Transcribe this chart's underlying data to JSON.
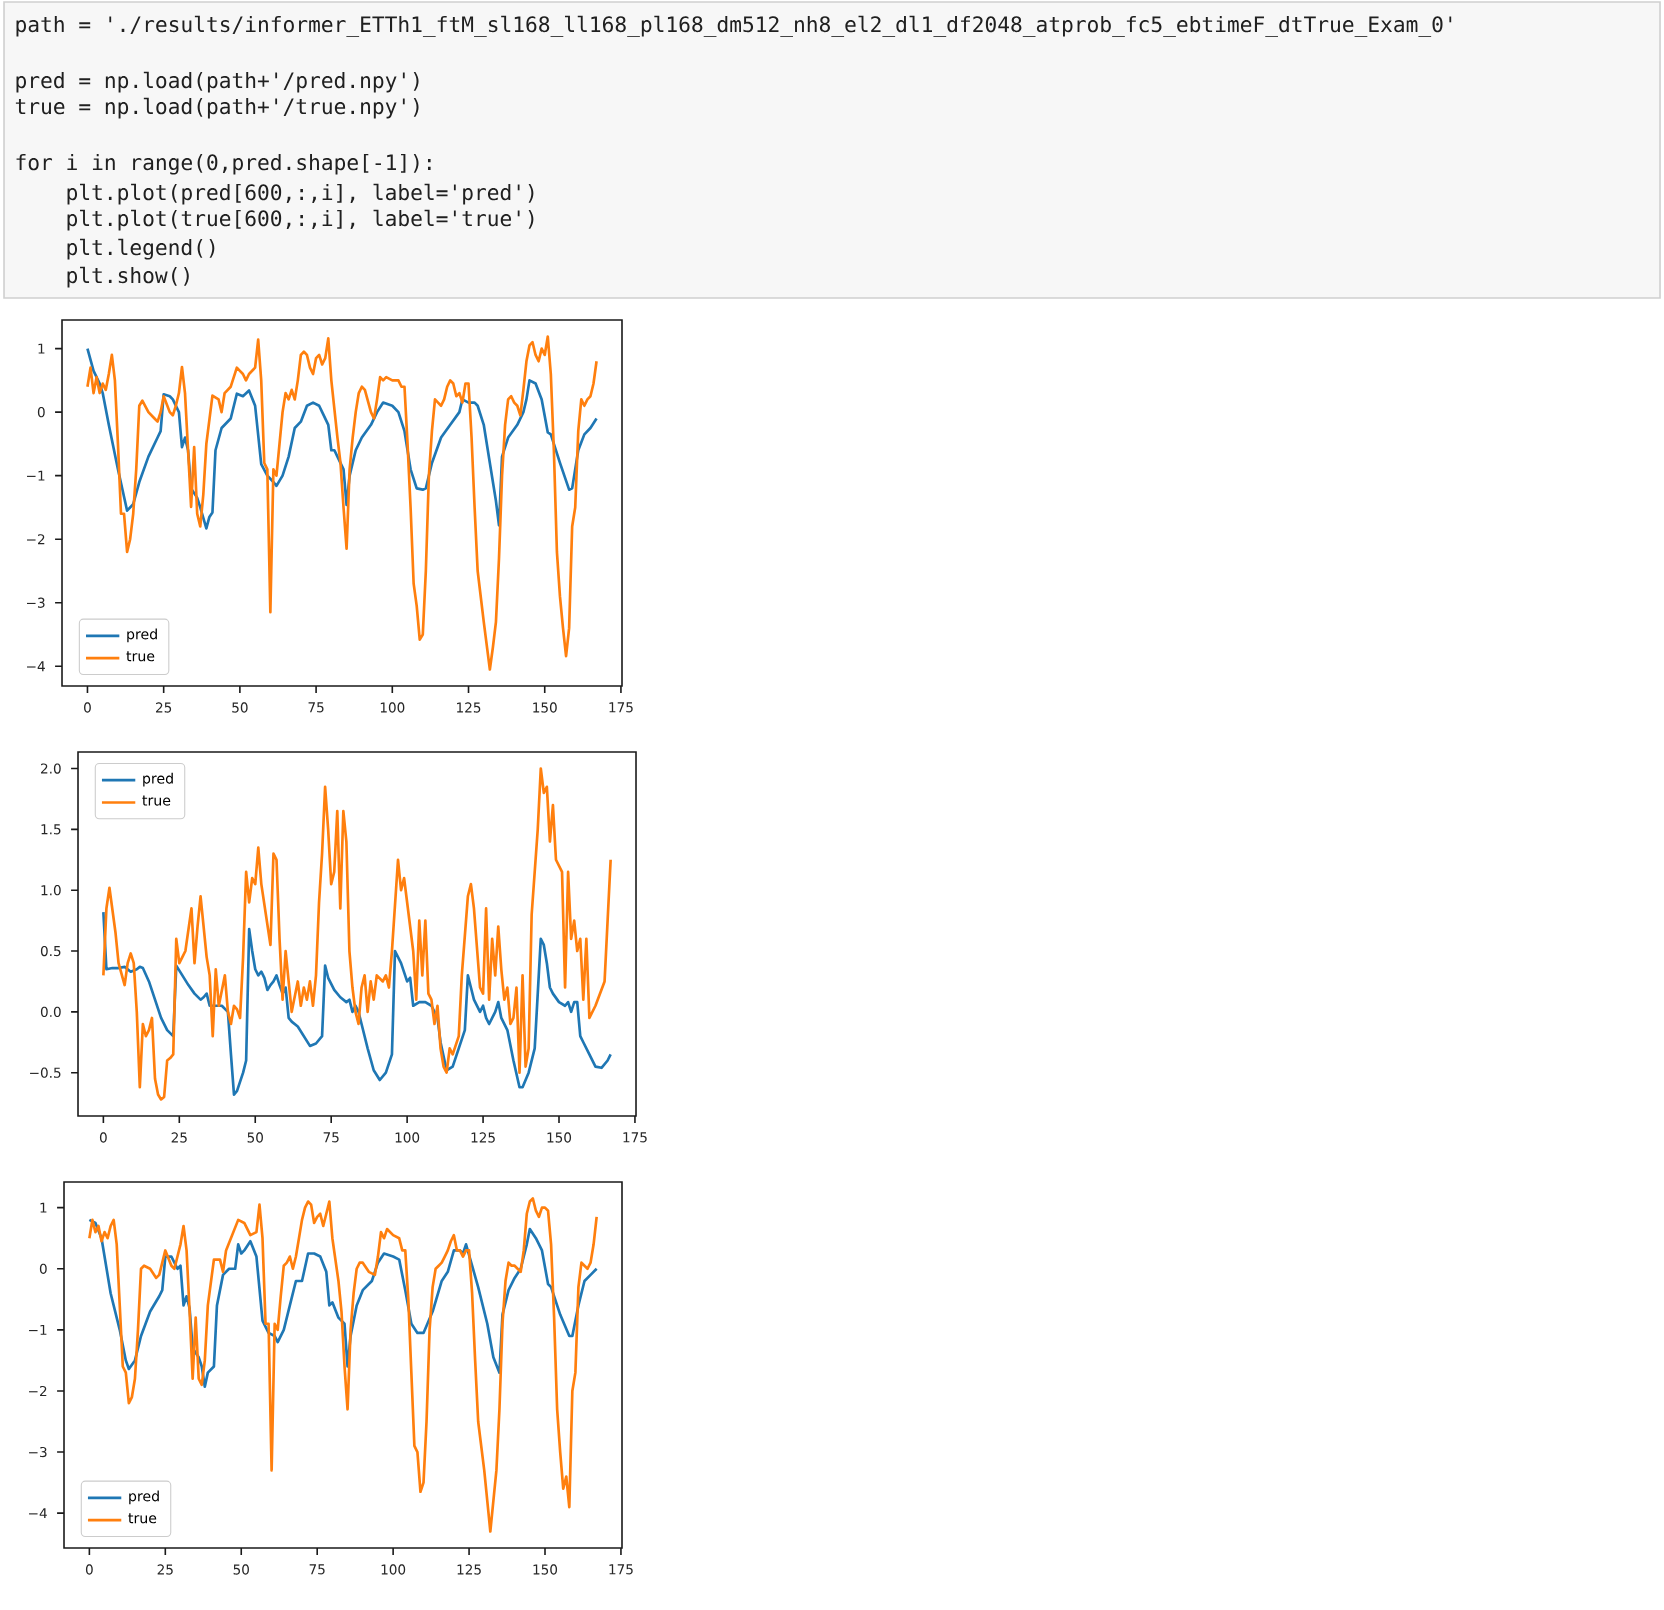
{
  "chart_data": [
    {
      "type": "line",
      "annotations": [
        "path = './results/informer_ETTh1_ftM_sl168_ll168_pl168_dm512_nh8_el2_dl1_df2048_atprob_fc5_ebtimeF_dtTrue_Exam_0'",
        "pred = np.load(path+'/pred.npy')",
        "true = np.load(path+'/true.npy')",
        "for i in range(0,pred.shape[-1]):",
        "plt.plot(pred[600,:,i], label='pred')",
        "plt.plot(true[600,:,i], label='true')",
        "plt.legend()",
        "plt.show()"
      ],
      "xlim": [
        -8.35,
        175.35
      ],
      "ylim": [
        -4.31,
        1.45
      ],
      "xticks": [
        0,
        25,
        50,
        75,
        100,
        125,
        150,
        175
      ],
      "yticks": [
        {
          "value": -4,
          "label": "−4"
        },
        {
          "value": -3,
          "label": "−3"
        },
        {
          "value": -2,
          "label": "−2"
        },
        {
          "value": -1,
          "label": "−1"
        },
        0,
        1
      ],
      "legend": "bottom left",
      "series": [
        {
          "name": "pred",
          "color": "#1f77b4",
          "x": [
            0,
            2,
            4,
            5,
            7,
            10,
            13,
            15,
            17,
            20,
            23,
            24,
            25,
            27,
            28,
            30,
            31,
            32,
            33,
            34,
            36,
            37,
            39,
            40,
            41,
            42,
            44,
            47,
            49,
            51,
            53,
            55,
            57,
            59,
            61,
            62,
            64,
            66,
            68,
            70,
            72,
            74,
            76,
            77,
            79,
            80,
            81,
            82,
            84,
            85,
            86,
            88,
            90,
            93,
            95,
            97,
            100,
            102,
            104,
            106,
            108,
            110,
            111,
            113,
            116,
            119,
            122,
            123,
            125,
            127,
            128,
            130,
            132,
            134,
            135,
            136,
            138,
            141,
            143,
            144,
            145,
            147,
            149,
            151,
            152,
            155,
            158,
            159,
            161,
            163,
            165,
            167
          ],
          "values": [
            1.0,
            0.65,
            0.45,
            0.3,
            -0.2,
            -0.9,
            -1.55,
            -1.45,
            -1.1,
            -0.7,
            -0.4,
            -0.3,
            0.28,
            0.25,
            0.2,
            0.0,
            -0.55,
            -0.4,
            -0.6,
            -1.2,
            -1.35,
            -1.5,
            -1.83,
            -1.65,
            -1.58,
            -0.6,
            -0.25,
            -0.1,
            0.29,
            0.25,
            0.34,
            0.1,
            -0.82,
            -1.0,
            -1.1,
            -1.16,
            -1.0,
            -0.7,
            -0.25,
            -0.15,
            0.1,
            0.15,
            0.1,
            0.0,
            -0.2,
            -0.6,
            -0.6,
            -0.7,
            -0.9,
            -1.46,
            -1.0,
            -0.6,
            -0.4,
            -0.2,
            0.0,
            0.15,
            0.1,
            0.0,
            -0.3,
            -0.9,
            -1.2,
            -1.22,
            -1.2,
            -0.8,
            -0.4,
            -0.2,
            0.0,
            0.2,
            0.15,
            0.15,
            0.1,
            -0.2,
            -0.8,
            -1.4,
            -1.78,
            -0.7,
            -0.4,
            -0.2,
            0.0,
            0.2,
            0.5,
            0.45,
            0.2,
            -0.32,
            -0.35,
            -0.8,
            -1.22,
            -1.2,
            -0.6,
            -0.35,
            -0.25,
            -0.1
          ]
        },
        {
          "name": "true",
          "color": "#ff7f0e",
          "x": [
            0,
            1,
            2,
            3,
            4,
            5,
            6,
            7,
            8,
            9,
            10,
            11,
            12,
            13,
            14,
            15,
            16,
            17,
            18,
            20,
            22,
            23,
            24,
            25,
            27,
            28,
            29,
            30,
            31,
            32,
            33,
            34,
            35,
            36,
            37,
            38,
            39,
            41,
            43,
            44,
            45,
            47,
            49,
            50,
            51,
            52,
            53,
            55,
            56,
            57,
            58,
            59,
            60,
            61,
            62,
            63,
            64,
            65,
            66,
            67,
            68,
            69,
            70,
            71,
            72,
            73,
            74,
            75,
            76,
            77,
            78,
            79,
            80,
            82,
            83,
            84,
            85,
            86,
            87,
            88,
            89,
            90,
            91,
            93,
            94,
            95,
            96,
            97,
            98,
            100,
            102,
            103,
            104,
            105,
            106,
            107,
            108,
            109,
            110,
            111,
            112,
            113,
            114,
            115,
            116,
            117,
            118,
            119,
            120,
            121,
            122,
            123,
            124,
            125,
            126,
            127,
            128,
            130,
            132,
            133,
            134,
            135,
            136,
            137,
            138,
            139,
            140,
            141,
            142,
            143,
            144,
            145,
            146,
            147,
            148,
            149,
            150,
            151,
            152,
            153,
            154,
            155,
            156,
            157,
            158,
            159,
            160,
            161,
            162,
            163,
            164,
            165,
            166,
            167
          ],
          "values": [
            0.4,
            0.7,
            0.3,
            0.55,
            0.3,
            0.45,
            0.35,
            0.6,
            0.9,
            0.5,
            -0.5,
            -1.6,
            -1.6,
            -2.2,
            -2.0,
            -1.6,
            -0.9,
            0.1,
            0.18,
            0.0,
            -0.1,
            -0.15,
            0.0,
            0.25,
            0.0,
            -0.05,
            0.1,
            0.3,
            0.71,
            0.3,
            -0.6,
            -1.49,
            -0.55,
            -1.6,
            -1.8,
            -1.3,
            -0.5,
            0.26,
            0.2,
            0.0,
            0.3,
            0.4,
            0.7,
            0.65,
            0.6,
            0.5,
            0.6,
            0.7,
            1.14,
            0.5,
            -0.8,
            -0.9,
            -3.15,
            -0.9,
            -1.0,
            -0.5,
            0.0,
            0.3,
            0.2,
            0.35,
            0.2,
            0.5,
            0.9,
            0.95,
            0.9,
            0.7,
            0.6,
            0.85,
            0.9,
            0.75,
            0.85,
            1.16,
            0.5,
            -0.4,
            -0.8,
            -1.5,
            -2.15,
            -0.9,
            -0.4,
            0.0,
            0.3,
            0.4,
            0.35,
            0.0,
            -0.1,
            0.2,
            0.55,
            0.5,
            0.55,
            0.5,
            0.5,
            0.4,
            0.4,
            -0.5,
            -1.5,
            -2.7,
            -3.05,
            -3.58,
            -3.5,
            -2.5,
            -1.0,
            -0.3,
            0.2,
            0.15,
            0.1,
            0.2,
            0.4,
            0.5,
            0.45,
            0.25,
            0.3,
            0.15,
            0.45,
            0.45,
            -0.4,
            -1.5,
            -2.5,
            -3.3,
            -4.05,
            -3.7,
            -3.3,
            -2.3,
            -1.0,
            -0.2,
            0.2,
            0.25,
            0.15,
            0.1,
            -0.05,
            0.35,
            0.8,
            1.05,
            1.1,
            0.9,
            0.8,
            1.0,
            0.9,
            1.19,
            0.6,
            -0.6,
            -2.2,
            -2.9,
            -3.4,
            -3.84,
            -3.4,
            -1.8,
            -1.5,
            -0.3,
            0.2,
            0.1,
            0.2,
            0.25,
            0.45,
            0.8
          ]
        }
      ]
    },
    {
      "type": "line",
      "xlim": [
        -8.35,
        175.35
      ],
      "ylim": [
        -0.856,
        2.136
      ],
      "xticks": [
        0,
        25,
        50,
        75,
        100,
        125,
        150,
        175
      ],
      "yticks": [
        {
          "value": -0.5,
          "label": "−0.5"
        },
        {
          "value": 0,
          "label": "0.0"
        },
        0.5,
        {
          "value": 1,
          "label": "1.0"
        },
        1.5,
        {
          "value": 2,
          "label": "2.0"
        }
      ],
      "legend": "top left",
      "series": [
        {
          "name": "pred",
          "color": "#1f77b4",
          "x": [
            0,
            1,
            3,
            5,
            7,
            9,
            11,
            12,
            13,
            15,
            17,
            19,
            21,
            23,
            24,
            26,
            28,
            30,
            32,
            33,
            34,
            35,
            37,
            39,
            41,
            42,
            43,
            44,
            46,
            47,
            48,
            49,
            50,
            51,
            52,
            53,
            54,
            55,
            56,
            57,
            58,
            59,
            60,
            61,
            62,
            64,
            66,
            68,
            70,
            72,
            73,
            74,
            76,
            78,
            80,
            81,
            82,
            83,
            84,
            85,
            87,
            89,
            91,
            93,
            95,
            96,
            98,
            100,
            101,
            102,
            104,
            106,
            108,
            110,
            111,
            113,
            115,
            117,
            119,
            120,
            121,
            122,
            124,
            125,
            126,
            127,
            129,
            130,
            131,
            133,
            135,
            137,
            138,
            140,
            142,
            144,
            145,
            146,
            147,
            148,
            150,
            152,
            153,
            154,
            155,
            156,
            157,
            158,
            160,
            162,
            164,
            166,
            167
          ],
          "values": [
            0.82,
            0.35,
            0.36,
            0.36,
            0.37,
            0.33,
            0.35,
            0.37,
            0.36,
            0.25,
            0.1,
            -0.05,
            -0.15,
            -0.2,
            0.38,
            0.3,
            0.22,
            0.15,
            0.1,
            0.12,
            0.15,
            0.05,
            0.05,
            0.05,
            0.0,
            -0.35,
            -0.68,
            -0.65,
            -0.5,
            -0.4,
            0.68,
            0.5,
            0.35,
            0.3,
            0.33,
            0.28,
            0.18,
            0.22,
            0.25,
            0.3,
            0.22,
            0.15,
            0.2,
            -0.05,
            -0.08,
            -0.12,
            -0.2,
            -0.28,
            -0.26,
            -0.2,
            0.38,
            0.28,
            0.18,
            0.12,
            0.08,
            0.1,
            0.0,
            0.05,
            0.0,
            -0.1,
            -0.3,
            -0.48,
            -0.56,
            -0.5,
            -0.35,
            0.5,
            0.4,
            0.25,
            0.28,
            0.05,
            0.08,
            0.08,
            0.05,
            -0.05,
            -0.25,
            -0.48,
            -0.45,
            -0.3,
            -0.15,
            0.3,
            0.2,
            0.1,
            0.0,
            0.05,
            -0.05,
            -0.1,
            0.0,
            0.08,
            -0.05,
            -0.15,
            -0.4,
            -0.62,
            -0.62,
            -0.5,
            -0.3,
            0.6,
            0.55,
            0.4,
            0.2,
            0.15,
            0.08,
            0.05,
            0.08,
            0.0,
            0.08,
            0.08,
            -0.2,
            -0.25,
            -0.35,
            -0.45,
            -0.46,
            -0.4,
            -0.35
          ]
        },
        {
          "name": "true",
          "color": "#ff7f0e",
          "x": [
            0,
            1,
            2,
            4,
            5,
            7,
            8,
            9,
            10,
            11,
            12,
            13,
            14,
            15,
            16,
            17,
            18,
            19,
            20,
            21,
            22,
            23,
            24,
            25,
            26,
            27,
            29,
            30,
            31,
            32,
            33,
            34,
            35,
            36,
            37,
            38,
            40,
            41,
            42,
            43,
            44,
            45,
            46,
            47,
            48,
            49,
            50,
            51,
            52,
            55,
            56,
            57,
            58,
            59,
            60,
            62,
            64,
            65,
            66,
            67,
            68,
            69,
            70,
            71,
            72,
            73,
            74,
            75,
            76,
            77,
            78,
            79,
            80,
            81,
            82,
            83,
            84,
            85,
            86,
            87,
            88,
            89,
            90,
            92,
            93,
            94,
            95,
            97,
            98,
            99,
            102,
            103,
            104,
            105,
            106,
            107,
            108,
            109,
            110,
            111,
            112,
            113,
            114,
            115,
            117,
            118,
            120,
            121,
            122,
            124,
            125,
            126,
            127,
            128,
            129,
            130,
            131,
            132,
            133,
            134,
            135,
            136,
            137,
            138,
            139,
            140,
            141,
            143,
            144,
            145,
            146,
            147,
            148,
            149,
            151,
            152,
            153,
            154,
            155,
            156,
            157,
            158,
            159,
            160,
            162,
            165,
            166,
            167
          ],
          "values": [
            0.3,
            0.85,
            1.02,
            0.65,
            0.4,
            0.22,
            0.4,
            0.48,
            0.4,
            0.0,
            -0.62,
            -0.1,
            -0.2,
            -0.15,
            -0.05,
            -0.55,
            -0.68,
            -0.72,
            -0.7,
            -0.4,
            -0.38,
            -0.35,
            0.6,
            0.4,
            0.45,
            0.5,
            0.85,
            0.4,
            0.7,
            0.95,
            0.7,
            0.45,
            0.3,
            -0.2,
            0.35,
            0.05,
            0.3,
            0.0,
            -0.1,
            0.05,
            0.02,
            -0.05,
            0.45,
            1.15,
            0.9,
            1.1,
            1.05,
            1.35,
            1.05,
            0.55,
            1.3,
            1.25,
            0.6,
            0.1,
            0.5,
            0.0,
            0.25,
            0.05,
            0.2,
            0.1,
            0.25,
            0.05,
            0.3,
            0.9,
            1.3,
            1.85,
            1.5,
            1.05,
            1.15,
            1.65,
            0.85,
            1.65,
            1.4,
            0.5,
            0.2,
            0.0,
            -0.1,
            0.2,
            0.3,
            0.0,
            0.25,
            0.1,
            0.3,
            0.25,
            0.3,
            0.2,
            0.5,
            1.25,
            1.0,
            1.1,
            0.5,
            0.1,
            0.75,
            0.3,
            0.75,
            0.15,
            0.1,
            -0.1,
            0.05,
            -0.3,
            -0.45,
            -0.5,
            -0.3,
            -0.35,
            -0.2,
            0.3,
            0.95,
            1.05,
            0.85,
            0.2,
            0.15,
            0.85,
            0.1,
            0.6,
            0.3,
            0.7,
            0.35,
            0.1,
            0.2,
            -0.1,
            -0.05,
            0.2,
            -0.5,
            0.3,
            -0.45,
            -0.3,
            0.8,
            1.5,
            2.0,
            1.8,
            1.85,
            1.4,
            1.7,
            1.25,
            1.15,
            0.2,
            1.15,
            0.6,
            0.75,
            0.5,
            0.6,
            0.1,
            0.6,
            -0.05,
            0.05,
            0.25,
            0.75,
            1.25
          ]
        }
      ]
    },
    {
      "type": "line",
      "xlim": [
        -8.35,
        175.35
      ],
      "ylim": [
        -4.57,
        1.42
      ],
      "xticks": [
        0,
        25,
        50,
        75,
        100,
        125,
        150,
        175
      ],
      "yticks": [
        {
          "value": -4,
          "label": "−4"
        },
        {
          "value": -3,
          "label": "−3"
        },
        {
          "value": -2,
          "label": "−2"
        },
        {
          "value": -1,
          "label": "−1"
        },
        0,
        1
      ],
      "legend": "bottom left",
      "series": [
        {
          "name": "pred",
          "color": "#1f77b4",
          "x": [
            0,
            2,
            4,
            5,
            7,
            10,
            12,
            13,
            15,
            17,
            20,
            23,
            24,
            25,
            27,
            29,
            30,
            31,
            32,
            33,
            34,
            36,
            37,
            38,
            39,
            41,
            42,
            44,
            46,
            48,
            49,
            50,
            51,
            53,
            55,
            57,
            59,
            61,
            62,
            64,
            66,
            68,
            70,
            72,
            74,
            76,
            78,
            79,
            80,
            82,
            84,
            85,
            86,
            88,
            90,
            93,
            95,
            97,
            100,
            102,
            104,
            106,
            108,
            110,
            113,
            116,
            118,
            120,
            122,
            123,
            124,
            126,
            128,
            131,
            133,
            135,
            136,
            138,
            140,
            142,
            143,
            144,
            145,
            147,
            149,
            151,
            152,
            155,
            158,
            159,
            161,
            163,
            165,
            167
          ],
          "values": [
            0.8,
            0.75,
            0.5,
            0.2,
            -0.4,
            -1.0,
            -1.5,
            -1.64,
            -1.5,
            -1.1,
            -0.7,
            -0.45,
            -0.35,
            0.2,
            0.2,
            0.0,
            0.05,
            -0.6,
            -0.45,
            -0.65,
            -1.3,
            -1.45,
            -1.6,
            -1.93,
            -1.7,
            -1.6,
            -0.6,
            -0.1,
            0.0,
            0.0,
            0.4,
            0.25,
            0.3,
            0.45,
            0.2,
            -0.85,
            -1.05,
            -1.1,
            -1.2,
            -1.0,
            -0.6,
            -0.2,
            -0.2,
            0.25,
            0.25,
            0.2,
            -0.05,
            -0.6,
            -0.55,
            -0.8,
            -0.9,
            -1.6,
            -1.1,
            -0.6,
            -0.35,
            -0.2,
            0.1,
            0.25,
            0.2,
            0.15,
            -0.35,
            -0.9,
            -1.05,
            -1.05,
            -0.7,
            -0.2,
            -0.05,
            0.3,
            0.3,
            0.25,
            0.4,
            0.05,
            -0.3,
            -0.9,
            -1.45,
            -1.7,
            -0.75,
            -0.35,
            -0.15,
            0.0,
            0.2,
            0.4,
            0.65,
            0.5,
            0.3,
            -0.25,
            -0.3,
            -0.75,
            -1.1,
            -1.1,
            -0.6,
            -0.2,
            -0.1,
            0.0
          ]
        },
        {
          "name": "true",
          "color": "#ff7f0e",
          "x": [
            0,
            1,
            2,
            3,
            4,
            5,
            6,
            7,
            8,
            9,
            10,
            11,
            12,
            13,
            14,
            15,
            16,
            17,
            18,
            20,
            22,
            23,
            24,
            25,
            27,
            28,
            29,
            30,
            31,
            32,
            33,
            34,
            35,
            36,
            37,
            38,
            39,
            41,
            43,
            44,
            45,
            47,
            49,
            51,
            53,
            55,
            56,
            57,
            58,
            59,
            60,
            61,
            62,
            63,
            64,
            65,
            66,
            67,
            68,
            69,
            70,
            71,
            72,
            73,
            74,
            75,
            76,
            77,
            78,
            79,
            80,
            82,
            83,
            84,
            85,
            86,
            87,
            88,
            89,
            90,
            92,
            94,
            95,
            96,
            97,
            98,
            100,
            102,
            103,
            104,
            105,
            106,
            107,
            108,
            109,
            110,
            111,
            112,
            113,
            114,
            115,
            116,
            117,
            118,
            119,
            120,
            121,
            122,
            123,
            124,
            125,
            126,
            127,
            128,
            130,
            132,
            133,
            134,
            135,
            136,
            137,
            138,
            139,
            140,
            142,
            143,
            144,
            145,
            146,
            147,
            148,
            149,
            150,
            151,
            152,
            153,
            154,
            155,
            156,
            157,
            158,
            159,
            160,
            161,
            162,
            163,
            164,
            165,
            166,
            167
          ],
          "values": [
            0.5,
            0.8,
            0.6,
            0.7,
            0.45,
            0.6,
            0.5,
            0.7,
            0.8,
            0.4,
            -0.6,
            -1.6,
            -1.7,
            -2.2,
            -2.1,
            -1.8,
            -1.0,
            0.0,
            0.05,
            0.0,
            -0.15,
            -0.1,
            0.1,
            0.3,
            0.05,
            0.0,
            0.2,
            0.4,
            0.7,
            0.3,
            -0.7,
            -1.8,
            -0.8,
            -1.8,
            -1.9,
            -1.5,
            -0.6,
            0.15,
            0.15,
            -0.05,
            0.3,
            0.55,
            0.8,
            0.75,
            0.55,
            0.6,
            1.05,
            0.5,
            -0.9,
            -0.9,
            -3.3,
            -0.9,
            -1.0,
            -0.45,
            0.05,
            0.1,
            0.2,
            0.0,
            0.2,
            0.5,
            0.8,
            1.0,
            1.1,
            1.05,
            0.75,
            0.85,
            0.9,
            0.7,
            0.9,
            1.1,
            0.5,
            -0.2,
            -0.7,
            -1.6,
            -2.3,
            -1.0,
            -0.4,
            0.0,
            0.1,
            0.1,
            -0.05,
            -0.1,
            0.2,
            0.6,
            0.5,
            0.65,
            0.55,
            0.5,
            0.3,
            0.3,
            -0.5,
            -1.7,
            -2.9,
            -3.0,
            -3.65,
            -3.5,
            -2.5,
            -1.0,
            -0.3,
            0.0,
            0.05,
            0.1,
            0.2,
            0.3,
            0.45,
            0.55,
            0.3,
            0.3,
            0.2,
            0.3,
            0.3,
            -0.4,
            -1.5,
            -2.5,
            -3.3,
            -4.3,
            -3.8,
            -3.3,
            -2.3,
            -0.9,
            -0.2,
            0.1,
            0.05,
            0.05,
            -0.05,
            0.3,
            0.9,
            1.1,
            1.15,
            0.95,
            0.85,
            1.0,
            1.0,
            0.95,
            0.4,
            -0.8,
            -2.3,
            -3.0,
            -3.6,
            -3.4,
            -3.9,
            -2.0,
            -1.7,
            -0.3,
            0.1,
            0.05,
            0.0,
            0.1,
            0.4,
            0.85
          ]
        }
      ]
    }
  ]
}
